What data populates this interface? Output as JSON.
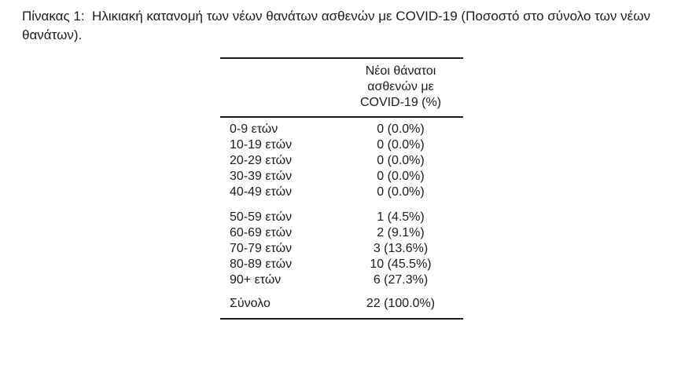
{
  "caption": {
    "line1": "Πίνακας 1:  Ηλικιακή κατανομή των νέων θανάτων ασθενών με COVID-19 (Ποσοστό στο σύνολο των νέων",
    "line2": "θανάτων)."
  },
  "table": {
    "column_header": "Νέοι θάνατοι\nασθενών με\nCOVID-19 (%)",
    "rows": [
      {
        "label": "0-9 ετών",
        "value": "0 (0.0%)"
      },
      {
        "label": "10-19 ετών",
        "value": "0 (0.0%)"
      },
      {
        "label": "20-29 ετών",
        "value": "0 (0.0%)"
      },
      {
        "label": "30-39 ετών",
        "value": "0 (0.0%)"
      },
      {
        "label": "40-49 ετών",
        "value": "0 (0.0%)"
      },
      {
        "label": "50-59 ετών",
        "value": "1 (4.5%)"
      },
      {
        "label": "60-69 ετών",
        "value": "2 (9.1%)"
      },
      {
        "label": "70-79 ετών",
        "value": "3 (13.6%)"
      },
      {
        "label": "80-89 ετών",
        "value": "10 (45.5%)"
      },
      {
        "label": "90+ ετών",
        "value": "6 (27.3%)"
      }
    ],
    "total": {
      "label": "Σύνολο",
      "value": "22 (100.0%)"
    }
  },
  "colors": {
    "text": "#1d1d1d",
    "rule": "#1d1d1d",
    "background": "#ffffff"
  }
}
